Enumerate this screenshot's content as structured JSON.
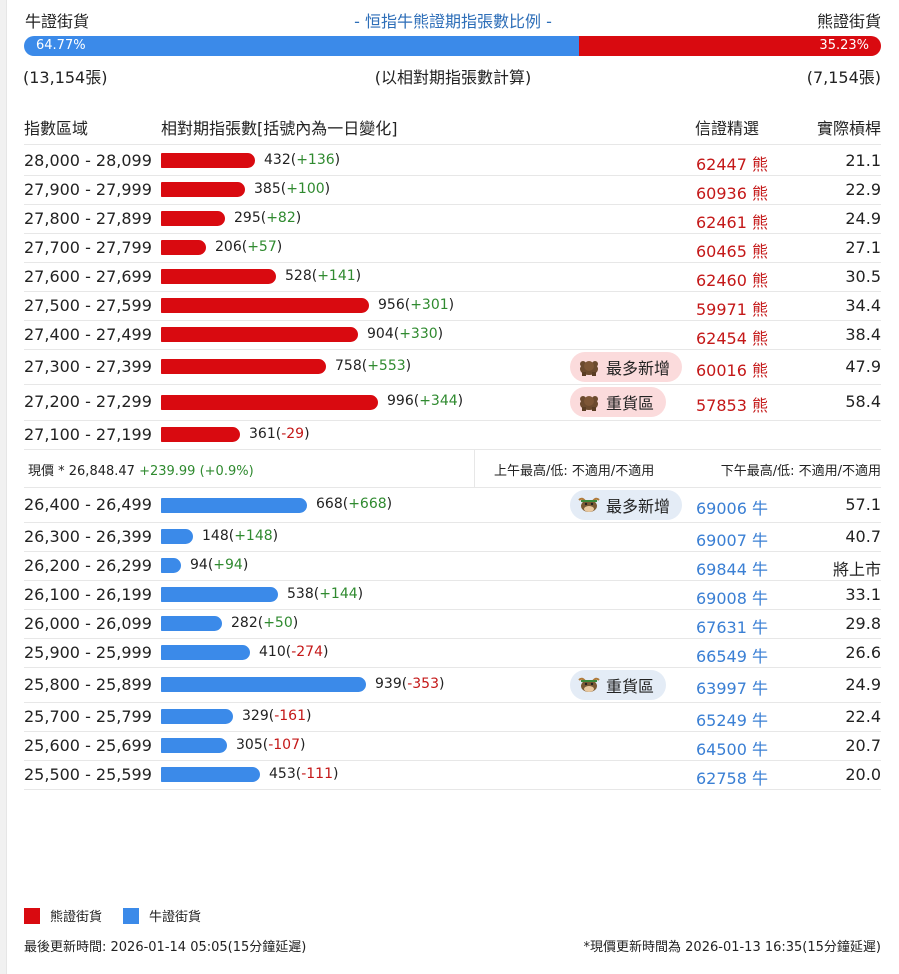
{
  "header": {
    "bull_label": "牛證街貨",
    "title": "- 恒指牛熊證期指張數比例 -",
    "bear_label": "熊證街貨"
  },
  "ratio": {
    "bull_pct": "64.77%",
    "bear_pct": "35.23%",
    "bull_fraction": 0.6477
  },
  "counts": {
    "bull": "(13,154張)",
    "note": "(以相對期指張數計算)",
    "bear": "(7,154張)"
  },
  "columns": {
    "range": "指數區域",
    "qty": "相對期指張數[括號內為一日變化]",
    "selection": "信證精選",
    "gearing": "實際槓桿"
  },
  "bear_rows": [
    {
      "range": "28,000 - 28,099",
      "qty": 432,
      "qty_text": "432",
      "change": "+136",
      "code": "62447 熊",
      "gearing": "21.1"
    },
    {
      "range": "27,900 - 27,999",
      "qty": 385,
      "qty_text": "385",
      "change": "+100",
      "code": "60936 熊",
      "gearing": "22.9"
    },
    {
      "range": "27,800 - 27,899",
      "qty": 295,
      "qty_text": "295",
      "change": "+82",
      "code": "62461 熊",
      "gearing": "24.9"
    },
    {
      "range": "27,700 - 27,799",
      "qty": 206,
      "qty_text": "206",
      "change": "+57",
      "code": "60465 熊",
      "gearing": "27.1"
    },
    {
      "range": "27,600 - 27,699",
      "qty": 528,
      "qty_text": "528",
      "change": "+141",
      "code": "62460 熊",
      "gearing": "30.5"
    },
    {
      "range": "27,500 - 27,599",
      "qty": 956,
      "qty_text": "956",
      "change": "+301",
      "code": "59971 熊",
      "gearing": "34.4"
    },
    {
      "range": "27,400 - 27,499",
      "qty": 904,
      "qty_text": "904",
      "change": "+330",
      "code": "62454 熊",
      "gearing": "38.4"
    },
    {
      "range": "27,300 - 27,399",
      "qty": 758,
      "qty_text": "758",
      "change": "+553",
      "code": "60016 熊",
      "gearing": "47.9",
      "badge": "最多新增"
    },
    {
      "range": "27,200 - 27,299",
      "qty": 996,
      "qty_text": "996",
      "change": "+344",
      "code": "57853 熊",
      "gearing": "58.4",
      "badge": "重貨區"
    },
    {
      "range": "27,100 - 27,199",
      "qty": 361,
      "qty_text": "361",
      "change": "-29",
      "code": "",
      "gearing": ""
    }
  ],
  "middle": {
    "price": "現價 * 26,848.47",
    "price_change": "+239.99 (+0.9%)",
    "am": "上午最高/低: 不適用/不適用",
    "pm": "下午最高/低: 不適用/不適用"
  },
  "bull_rows": [
    {
      "range": "26,400 - 26,499",
      "qty": 668,
      "qty_text": "668",
      "change": "+668",
      "code": "69006 牛",
      "gearing": "57.1",
      "badge": "最多新增"
    },
    {
      "range": "26,300 - 26,399",
      "qty": 148,
      "qty_text": "148",
      "change": "+148",
      "code": "69007 牛",
      "gearing": "40.7"
    },
    {
      "range": "26,200 - 26,299",
      "qty": 94,
      "qty_text": "94",
      "change": "+94",
      "code": "69844 牛",
      "gearing": "將上市"
    },
    {
      "range": "26,100 - 26,199",
      "qty": 538,
      "qty_text": "538",
      "change": "+144",
      "code": "69008 牛",
      "gearing": "33.1"
    },
    {
      "range": "26,000 - 26,099",
      "qty": 282,
      "qty_text": "282",
      "change": "+50",
      "code": "67631 牛",
      "gearing": "29.8"
    },
    {
      "range": "25,900 - 25,999",
      "qty": 410,
      "qty_text": "410",
      "change": "-274",
      "code": "66549 牛",
      "gearing": "26.6"
    },
    {
      "range": "25,800 - 25,899",
      "qty": 939,
      "qty_text": "939",
      "change": "-353",
      "code": "63997 牛",
      "gearing": "24.9",
      "badge": "重貨區"
    },
    {
      "range": "25,700 - 25,799",
      "qty": 329,
      "qty_text": "329",
      "change": "-161",
      "code": "65249 牛",
      "gearing": "22.4"
    },
    {
      "range": "25,600 - 25,699",
      "qty": 305,
      "qty_text": "305",
      "change": "-107",
      "code": "64500 牛",
      "gearing": "20.7"
    },
    {
      "range": "25,500 - 25,599",
      "qty": 453,
      "qty_text": "453",
      "change": "-111",
      "code": "62758 牛",
      "gearing": "20.0"
    }
  ],
  "legend": {
    "bear": "熊證街貨",
    "bull": "牛證街貨"
  },
  "footer": {
    "updated": "最後更新時間: 2026-01-14 05:05(15分鐘延遲)",
    "price_updated": "*現價更新時間為 2026-01-13 16:35(15分鐘延遲)"
  },
  "colors": {
    "bear": "#d90a10",
    "bull": "#3b8ae9",
    "title_blue": "#2d6eb8",
    "positive": "#2f8a2f",
    "negative": "#c41818"
  },
  "icons": {
    "bear_badge": "bear-icon",
    "bull_badge": "bull-icon"
  }
}
